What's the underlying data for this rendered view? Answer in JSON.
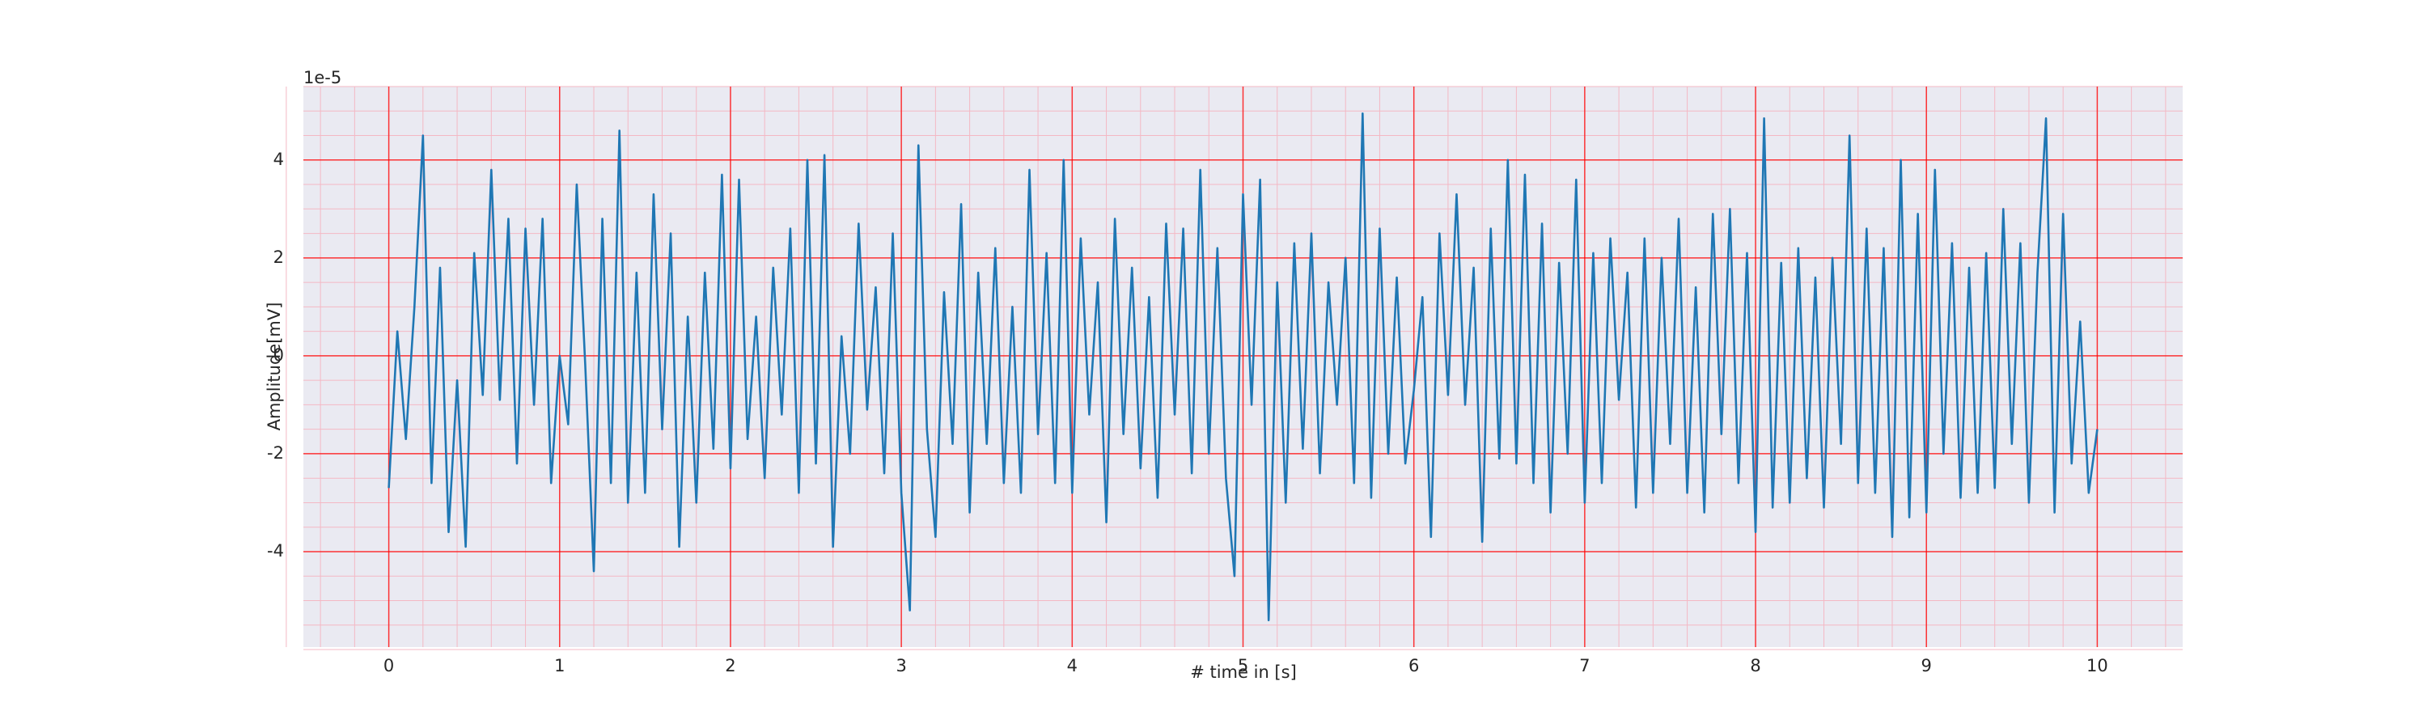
{
  "chart_data": {
    "type": "line",
    "xlabel": "# time in [s]",
    "ylabel": "Amplitude[mV]",
    "y_offset_label": "1e-5",
    "xlim": [
      -0.5,
      10.5
    ],
    "ylim": [
      -5.95,
      5.5
    ],
    "xticks": [
      0,
      1,
      2,
      3,
      4,
      5,
      6,
      7,
      8,
      9,
      10
    ],
    "yticks": [
      -4,
      -2,
      0,
      2,
      4
    ],
    "grid": true,
    "grid_color": "#ff0000",
    "minor_grid_color": "#f4b8c4",
    "minor_per_major": {
      "x": 5,
      "y": 4
    },
    "background": "#eaeaf2",
    "x": [
      0,
      0.05,
      0.1,
      0.15,
      0.2,
      0.25,
      0.3,
      0.35,
      0.4,
      0.45,
      0.5,
      0.55,
      0.6,
      0.65,
      0.7,
      0.75,
      0.8,
      0.85,
      0.9,
      0.95,
      1,
      1.05,
      1.1,
      1.15,
      1.2,
      1.25,
      1.3,
      1.35,
      1.4,
      1.45,
      1.5,
      1.55,
      1.6,
      1.65,
      1.7,
      1.75,
      1.8,
      1.85,
      1.9,
      1.95,
      2,
      2.05,
      2.1,
      2.15,
      2.2,
      2.25,
      2.3,
      2.35,
      2.4,
      2.45,
      2.5,
      2.55,
      2.6,
      2.65,
      2.7,
      2.75,
      2.8,
      2.85,
      2.9,
      2.95,
      3,
      3.05,
      3.1,
      3.15,
      3.2,
      3.25,
      3.3,
      3.35,
      3.4,
      3.45,
      3.5,
      3.55,
      3.6,
      3.65,
      3.7,
      3.75,
      3.8,
      3.85,
      3.9,
      3.95,
      4,
      4.05,
      4.1,
      4.15,
      4.2,
      4.25,
      4.3,
      4.35,
      4.4,
      4.45,
      4.5,
      4.55,
      4.6,
      4.65,
      4.7,
      4.75,
      4.8,
      4.85,
      4.9,
      4.95,
      5,
      5.05,
      5.1,
      5.15,
      5.2,
      5.25,
      5.3,
      5.35,
      5.4,
      5.45,
      5.5,
      5.55,
      5.6,
      5.65,
      5.7,
      5.75,
      5.8,
      5.85,
      5.9,
      5.95,
      6,
      6.05,
      6.1,
      6.15,
      6.2,
      6.25,
      6.3,
      6.35,
      6.4,
      6.45,
      6.5,
      6.55,
      6.6,
      6.65,
      6.7,
      6.75,
      6.8,
      6.85,
      6.9,
      6.95,
      7,
      7.05,
      7.1,
      7.15,
      7.2,
      7.25,
      7.3,
      7.35,
      7.4,
      7.45,
      7.5,
      7.55,
      7.6,
      7.65,
      7.7,
      7.75,
      7.8,
      7.85,
      7.9,
      7.95,
      8,
      8.05,
      8.1,
      8.15,
      8.2,
      8.25,
      8.3,
      8.35,
      8.4,
      8.45,
      8.5,
      8.55,
      8.6,
      8.65,
      8.7,
      8.75,
      8.8,
      8.85,
      8.9,
      8.95,
      9,
      9.05,
      9.1,
      9.15,
      9.2,
      9.25,
      9.3,
      9.35,
      9.4,
      9.45,
      9.5,
      9.55,
      9.6,
      9.65,
      9.7,
      9.75,
      9.8,
      9.85,
      9.9,
      9.95,
      10
    ],
    "series": [
      {
        "color": "#1f77b4",
        "values": [
          -2.7,
          0.5,
          -1.7,
          1.0,
          4.5,
          -2.6,
          1.8,
          -3.6,
          -0.5,
          -3.9,
          2.1,
          -0.8,
          3.8,
          -0.9,
          2.8,
          -2.2,
          2.6,
          -1.0,
          2.8,
          -2.6,
          0.0,
          -1.4,
          3.5,
          -0.2,
          -4.4,
          2.8,
          -2.6,
          4.6,
          -3.0,
          1.7,
          -2.8,
          3.3,
          -1.5,
          2.5,
          -3.9,
          0.8,
          -3.0,
          1.7,
          -1.9,
          3.7,
          -2.3,
          3.6,
          -1.7,
          0.8,
          -2.5,
          1.8,
          -1.2,
          2.6,
          -2.8,
          4.0,
          -2.2,
          4.1,
          -3.9,
          0.4,
          -2.0,
          2.7,
          -1.1,
          1.4,
          -2.4,
          2.5,
          -2.8,
          -5.2,
          4.3,
          -1.5,
          -3.7,
          1.3,
          -1.8,
          3.1,
          -3.2,
          1.7,
          -1.8,
          2.2,
          -2.6,
          1.0,
          -2.8,
          3.8,
          -1.6,
          2.1,
          -2.6,
          4.0,
          -2.8,
          2.4,
          -1.2,
          1.5,
          -3.4,
          2.8,
          -1.6,
          1.8,
          -2.3,
          1.2,
          -2.9,
          2.7,
          -1.2,
          2.6,
          -2.4,
          3.8,
          -2.0,
          2.2,
          -2.5,
          -4.5,
          3.3,
          -1.0,
          3.6,
          -5.4,
          1.5,
          -3.0,
          2.3,
          -1.9,
          2.5,
          -2.4,
          1.5,
          -1.0,
          2.0,
          -2.6,
          4.95,
          -2.9,
          2.6,
          -2.0,
          1.6,
          -2.2,
          -0.7,
          1.2,
          -3.7,
          2.5,
          -0.8,
          3.3,
          -1.0,
          1.8,
          -3.8,
          2.6,
          -2.1,
          4.0,
          -2.2,
          3.7,
          -2.6,
          2.7,
          -3.2,
          1.9,
          -2.0,
          3.6,
          -3.0,
          2.1,
          -2.6,
          2.4,
          -0.9,
          1.7,
          -3.1,
          2.4,
          -2.8,
          2.0,
          -1.8,
          2.8,
          -2.8,
          1.4,
          -3.2,
          2.9,
          -1.6,
          3.0,
          -2.6,
          2.1,
          -3.6,
          4.85,
          -3.1,
          1.9,
          -3.0,
          2.2,
          -2.5,
          1.6,
          -3.1,
          2.0,
          -1.8,
          4.5,
          -2.6,
          2.6,
          -2.8,
          2.2,
          -3.7,
          4.0,
          -3.3,
          2.9,
          -3.2,
          3.8,
          -2.0,
          2.3,
          -2.9,
          1.8,
          -2.8,
          2.1,
          -2.7,
          3.0,
          -1.8,
          2.3,
          -3.0,
          1.7,
          4.85,
          -3.2,
          2.9,
          -2.2,
          0.7,
          -2.8,
          -1.5
        ]
      }
    ]
  }
}
